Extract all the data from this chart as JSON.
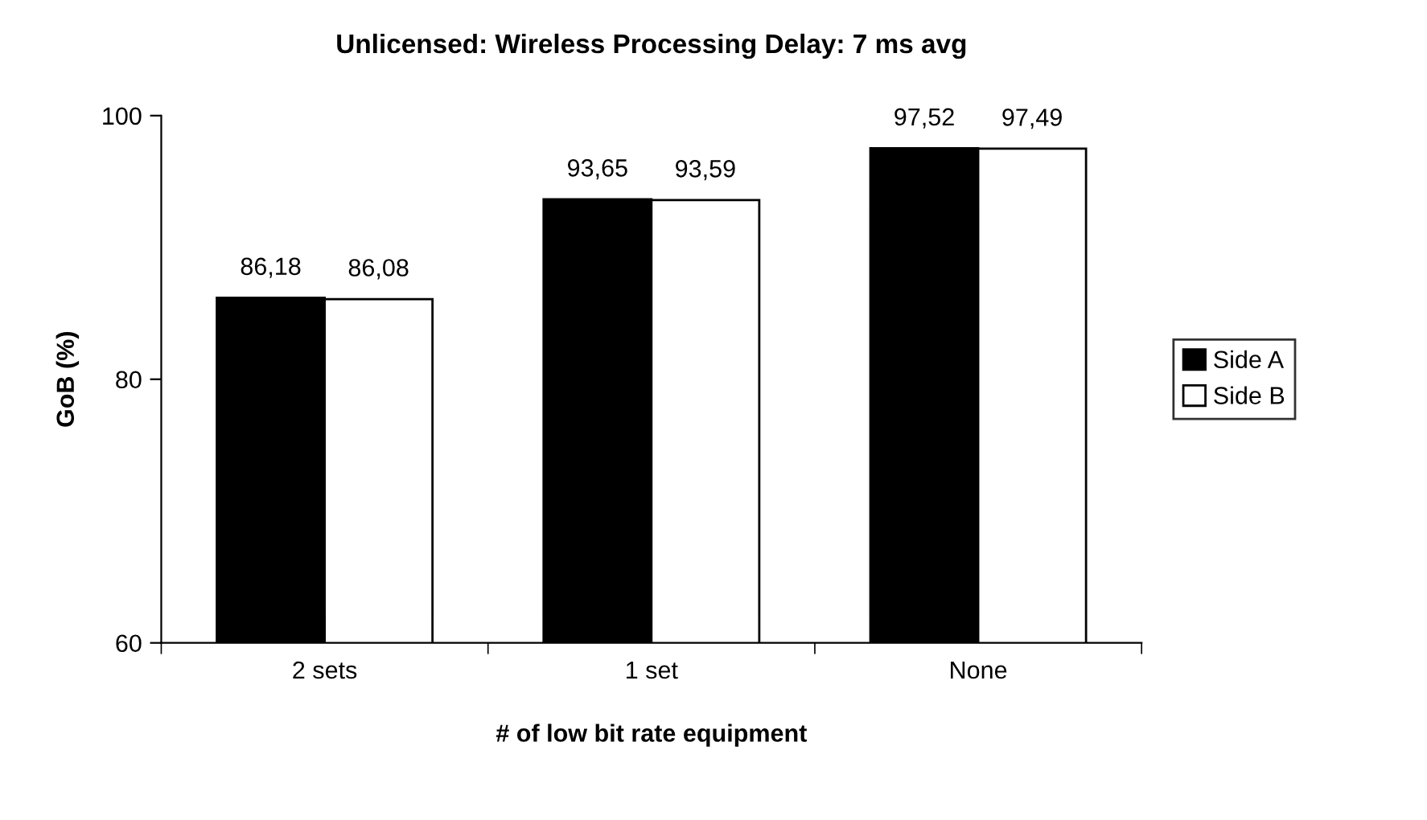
{
  "chart_data": {
    "type": "bar",
    "title": "Unlicensed: Wireless Processing Delay: 7 ms avg",
    "xlabel": "# of low bit rate equipment",
    "ylabel": "GoB (%)",
    "categories": [
      "2 sets",
      "1 set",
      "None"
    ],
    "series": [
      {
        "name": "Side A",
        "color": "#000000",
        "values": [
          86.18,
          93.65,
          97.52
        ],
        "value_labels": [
          "86,18",
          "93,65",
          "97,52"
        ]
      },
      {
        "name": "Side B",
        "color": "#ffffff",
        "values": [
          86.08,
          93.59,
          97.49
        ],
        "value_labels": [
          "86,08",
          "93,59",
          "97,49"
        ]
      }
    ],
    "ylim": [
      60,
      100
    ],
    "yticks": [
      60,
      80,
      100
    ],
    "grid": false,
    "legend": "right"
  }
}
